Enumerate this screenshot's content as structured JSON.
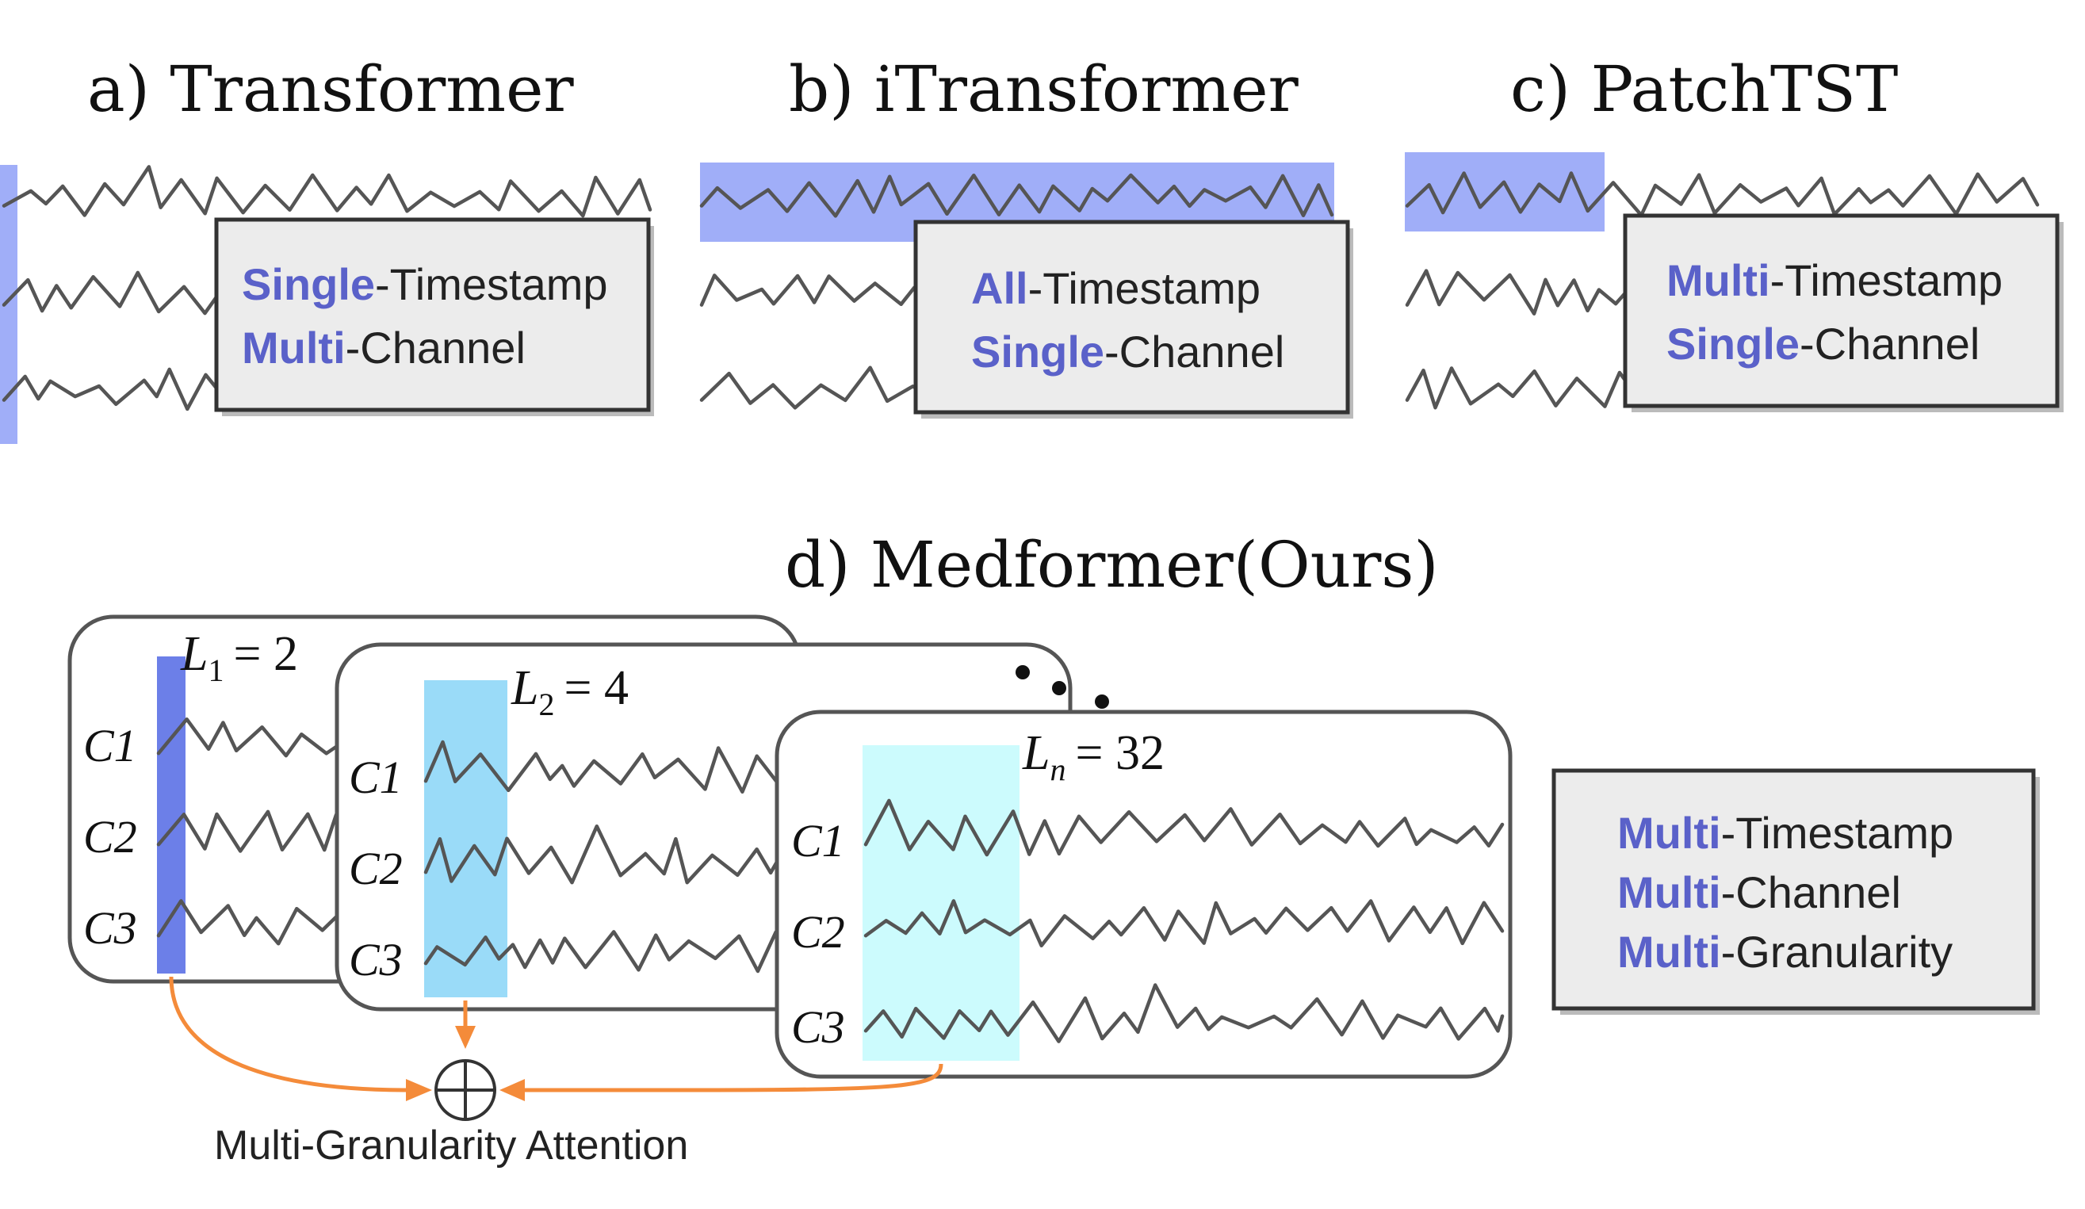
{
  "panels": [
    {
      "title": "a) Transformer",
      "lines": [
        {
          "emph": "Single",
          "rest": "-Timestamp"
        },
        {
          "emph": "Multi",
          "rest": "-Channel"
        }
      ]
    },
    {
      "title": "b) iTransformer",
      "lines": [
        {
          "emph": "All",
          "rest": "-Timestamp"
        },
        {
          "emph": "Single",
          "rest": "-Channel"
        }
      ]
    },
    {
      "title": "c) PatchTST",
      "lines": [
        {
          "emph": "Multi",
          "rest": "-Timestamp"
        },
        {
          "emph": "Single",
          "rest": "-Channel"
        }
      ]
    }
  ],
  "medformer": {
    "title": "d) Medformer(Ours)",
    "granularities": [
      {
        "label": "L",
        "sub": "1",
        "eq": "= 2"
      },
      {
        "label": "L",
        "sub": "2",
        "eq": "= 4"
      },
      {
        "label": "L",
        "sub": "n",
        "eq": "= 32"
      }
    ],
    "channels": [
      "C1",
      "C2",
      "C3"
    ],
    "lines": [
      {
        "emph": "Multi",
        "rest": "-Timestamp"
      },
      {
        "emph": "Multi",
        "rest": "-Channel"
      },
      {
        "emph": "Multi",
        "rest": "-Granularity"
      }
    ],
    "attention_label": "Multi-Granularity Attention"
  },
  "colors": {
    "emphasis": "#5A61C9",
    "highlight_blue": "#A0AEF8",
    "patch_l1": "#6C7FE8",
    "patch_l2": "#9ADBF8",
    "patch_ln": "#CCFBFD",
    "arrow": "#F48B3A",
    "wave": "#555555"
  }
}
